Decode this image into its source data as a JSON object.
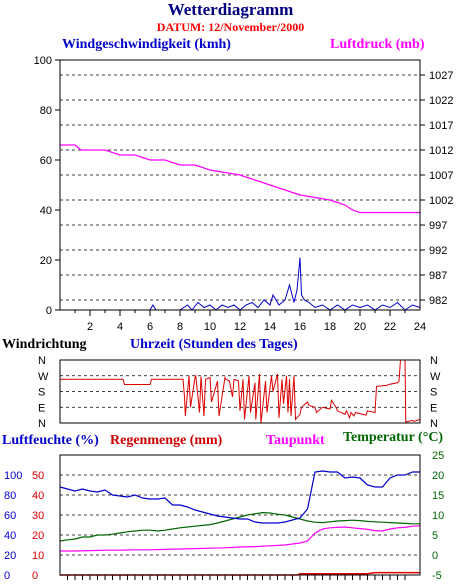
{
  "header": {
    "title": "Wetterdiagramm",
    "date": "DATUM: 12/November/2000"
  },
  "colors": {
    "wind": "#0000cc",
    "pressure": "#ff00ff",
    "wind_direction": "#dd0000",
    "humidity": "#0000cc",
    "rain": "#dd0000",
    "dewpoint": "#ff00ff",
    "temperature": "#006600"
  },
  "chart_data": [
    {
      "type": "line",
      "ylabel": "Windgeschwindigkeit (kmh)",
      "y2label": "Luftdruck (mb)",
      "xlabel": "Uhrzeit (Stunden des Tages)",
      "xlim": [
        0,
        24
      ],
      "ylim": [
        0,
        100
      ],
      "y2lim": [
        980,
        1030
      ],
      "x_ticks": [
        2,
        4,
        6,
        8,
        10,
        12,
        14,
        16,
        18,
        20,
        22,
        24
      ],
      "y_ticks": [
        0,
        20,
        40,
        60,
        80,
        100
      ],
      "y2_ticks": [
        982,
        987,
        992,
        997,
        1002,
        1007,
        1012,
        1017,
        1022,
        1027
      ],
      "grid": true,
      "series": [
        {
          "name": "Windgeschwindigkeit (kmh)",
          "axis": "left",
          "x": [
            0,
            6,
            6.2,
            6.4,
            8,
            8.5,
            8.8,
            9.2,
            9.6,
            10,
            10.4,
            10.8,
            11.2,
            11.6,
            12,
            12.4,
            12.8,
            13.2,
            13.6,
            14,
            14.2,
            14.6,
            15,
            15.3,
            15.6,
            15.8,
            16,
            16.1,
            16.3,
            16.6,
            17,
            17.5,
            18,
            18.5,
            19,
            19.5,
            20,
            20.5,
            21,
            21.5,
            22,
            22.5,
            23,
            23.5,
            24
          ],
          "values": [
            0,
            0,
            2,
            0,
            0,
            2,
            0,
            3,
            1,
            2,
            0,
            2,
            1,
            2,
            0,
            2,
            3,
            1,
            4,
            2,
            6,
            2,
            4,
            10,
            3,
            8,
            21,
            6,
            4,
            3,
            1,
            2,
            0,
            2,
            0,
            2,
            1,
            2,
            0,
            2,
            1,
            3,
            0,
            2,
            1
          ]
        },
        {
          "name": "Luftdruck (mb)",
          "axis": "right",
          "x": [
            0,
            1,
            1.4,
            2,
            3,
            4,
            4.2,
            5,
            6,
            6.2,
            7,
            8,
            9,
            10,
            11,
            12,
            13,
            14,
            15,
            16,
            17,
            18,
            18.5,
            19,
            19.5,
            20,
            21,
            22,
            23,
            24
          ],
          "values": [
            1013,
            1013,
            1012,
            1012,
            1012,
            1011,
            1011,
            1011,
            1010,
            1010,
            1010,
            1009,
            1009,
            1008,
            1007.5,
            1007,
            1006,
            1005,
            1004,
            1003,
            1002.5,
            1002,
            1001.5,
            1001,
            1000,
            999.5,
            999.5,
            999.5,
            999.5,
            999.5
          ]
        }
      ]
    },
    {
      "type": "line",
      "title": "Windrichtung",
      "categories": [
        "N",
        "W",
        "S",
        "E",
        "N"
      ],
      "x_ticks": [
        2,
        4,
        6,
        8,
        10,
        12,
        14,
        16,
        18,
        20,
        22,
        24
      ],
      "xlim": [
        0,
        24
      ],
      "series": [
        {
          "name": "Windrichtung",
          "x": [
            0,
            4.2,
            4.3,
            6,
            6.1,
            8.2,
            8.3,
            8.35,
            8.6,
            8.7,
            9,
            9.05,
            9.3,
            9.4,
            9.6,
            9.7,
            10,
            10.1,
            10.5,
            10.6,
            11,
            11.05,
            11.3,
            11.5,
            11.6,
            11.9,
            12,
            12.2,
            12.3,
            12.6,
            12.7,
            13,
            13.05,
            13.3,
            13.4,
            13.7,
            13.8,
            14.1,
            14.2,
            14.5,
            14.6,
            14.8,
            14.9,
            15.1,
            15.2,
            15.3,
            15.4,
            15.6,
            15.7,
            16,
            16.1,
            16.5,
            16.6,
            17,
            17.1,
            17.5,
            18,
            18.1,
            18.4,
            18.5,
            19,
            19.1,
            19.3,
            19.4,
            19.6,
            19.7,
            20.4,
            20.5,
            21,
            21.1,
            21.8,
            21.9,
            22.5,
            22.6,
            22.7,
            23,
            23.05,
            23.5,
            23.6,
            24
          ],
          "values": [
            250,
            250,
            220,
            220,
            250,
            250,
            150,
            40,
            270,
            90,
            260,
            270,
            60,
            265,
            40,
            250,
            260,
            120,
            240,
            40,
            260,
            250,
            240,
            150,
            250,
            240,
            70,
            250,
            20,
            270,
            60,
            230,
            20,
            280,
            0,
            240,
            60,
            270,
            180,
            280,
            30,
            250,
            110,
            270,
            60,
            250,
            40,
            270,
            20,
            50,
            90,
            120,
            100,
            90,
            60,
            90,
            80,
            130,
            90,
            70,
            50,
            70,
            30,
            60,
            40,
            60,
            45,
            70,
            60,
            210,
            215,
            220,
            230,
            240,
            360,
            360,
            5,
            15,
            10,
            20
          ]
        }
      ]
    },
    {
      "type": "line",
      "ylabels": [
        "Luftfeuchte (%)",
        "Regenmenge (mm)",
        "Taupunkt",
        "Temperatur (°C)"
      ],
      "y_ticks_humidity": [
        0,
        20,
        40,
        60,
        80,
        100
      ],
      "y_ticks_rain": [
        0,
        10,
        20,
        30,
        40,
        50
      ],
      "y_ticks_temp": [
        -5,
        0,
        5,
        10,
        15,
        20,
        25
      ],
      "xlim": [
        0,
        24
      ],
      "hum_lim": [
        0,
        120
      ],
      "rain_lim": [
        0,
        60
      ],
      "temp_lim": [
        -5,
        25
      ],
      "series": [
        {
          "name": "Luftfeuchte (%)",
          "axis": "humidity",
          "x": [
            0,
            0.5,
            1,
            1.5,
            2,
            2.5,
            3,
            3.5,
            4,
            4.5,
            5,
            5.5,
            6,
            6.5,
            7,
            7.5,
            8,
            8.5,
            9,
            9.5,
            10,
            10.5,
            11,
            11.5,
            12,
            12.5,
            13,
            13.5,
            14,
            14.5,
            15,
            15.5,
            16,
            16.5,
            17,
            17.5,
            18,
            18.5,
            19,
            19.5,
            20,
            20.5,
            21,
            21.5,
            22,
            22.5,
            23,
            23.5,
            24
          ],
          "values": [
            88,
            86,
            84,
            86,
            84,
            83,
            85,
            80,
            79,
            78,
            80,
            77,
            76,
            76,
            77,
            70,
            70,
            68,
            65,
            63,
            61,
            59,
            58,
            57,
            56,
            56,
            53,
            52,
            52,
            52,
            53,
            55,
            57,
            66,
            103,
            104,
            103,
            103,
            97,
            98,
            97,
            90,
            88,
            88,
            97,
            100,
            100,
            103,
            103
          ]
        },
        {
          "name": "Regenmenge (mm)",
          "axis": "rain",
          "x": [
            0,
            15.8,
            16,
            20.5,
            21,
            24
          ],
          "values": [
            0,
            0,
            0.6,
            0.6,
            1.2,
            1.2
          ]
        },
        {
          "name": "Taupunkt",
          "axis": "temp",
          "x": [
            0,
            1,
            2,
            3,
            4,
            5,
            6,
            7,
            8,
            9,
            10,
            11,
            12,
            13,
            14,
            15,
            16,
            16.5,
            17,
            17.5,
            18,
            18.5,
            19,
            19.5,
            20,
            20.5,
            21,
            21.5,
            22,
            22.5,
            23,
            23.5,
            24
          ],
          "values": [
            1,
            1,
            1.1,
            1.2,
            1.2,
            1.3,
            1.3,
            1.4,
            1.5,
            1.6,
            1.7,
            1.8,
            2,
            2.1,
            2.3,
            2.5,
            3,
            3.5,
            5.5,
            6.5,
            6.8,
            6.9,
            7,
            6.8,
            6.6,
            6.4,
            6.1,
            6,
            6.5,
            6.8,
            6.9,
            7.2,
            7.3
          ]
        },
        {
          "name": "Temperatur (°C)",
          "axis": "temp",
          "x": [
            0,
            0.5,
            1,
            1.5,
            2,
            2.5,
            3,
            3.5,
            4,
            4.5,
            5,
            5.5,
            6,
            6.5,
            7,
            7.5,
            8,
            8.5,
            9,
            9.5,
            10,
            10.5,
            11,
            11.5,
            12,
            12.5,
            13,
            13.5,
            14,
            14.5,
            15,
            15.5,
            16,
            16.5,
            17,
            17.5,
            18,
            18.5,
            19,
            19.5,
            20,
            20.5,
            21,
            21.5,
            22,
            22.5,
            23,
            23.5,
            24
          ],
          "values": [
            3.5,
            3.8,
            4,
            4.5,
            4.5,
            5,
            5,
            5.2,
            5.5,
            5.8,
            6,
            6.2,
            6.2,
            6,
            6.2,
            6.5,
            6.8,
            7,
            7.2,
            7.4,
            7.6,
            8,
            8.5,
            9,
            9.5,
            10,
            10.3,
            10.6,
            10.5,
            10.2,
            10,
            9.5,
            9,
            8.5,
            8.2,
            8.1,
            8.3,
            8.5,
            8.6,
            8.7,
            8.6,
            8.4,
            8.3,
            8.2,
            8.1,
            8,
            7.9,
            7.8,
            7.8
          ]
        }
      ]
    }
  ]
}
